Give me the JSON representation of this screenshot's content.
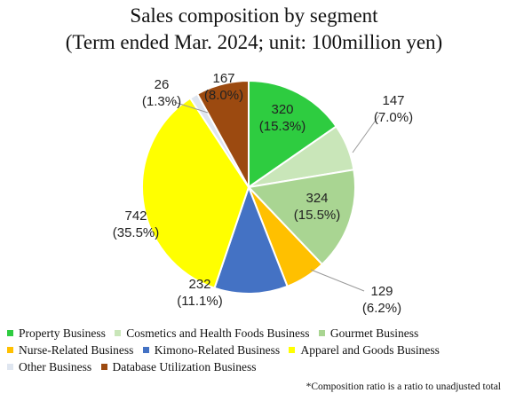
{
  "chart_data": {
    "type": "pie",
    "title": "Sales composition by segment",
    "subtitle": "(Term ended Mar. 2024; unit: 100million yen)",
    "slices": [
      {
        "name": "Property Business",
        "value": 320,
        "percent": "15.3%",
        "color": "#2ecc40"
      },
      {
        "name": "Cosmetics and Health Foods Business",
        "value": 147,
        "percent": "7.0%",
        "color": "#c9e6b9"
      },
      {
        "name": "Gourmet Business",
        "value": 324,
        "percent": "15.5%",
        "color": "#a9d592"
      },
      {
        "name": "Nurse-Related Business",
        "value": 129,
        "percent": "6.2%",
        "color": "#ffc000"
      },
      {
        "name": "Kimono-Related Business",
        "value": 232,
        "percent": "11.1%",
        "color": "#4472c4"
      },
      {
        "name": "Apparel and Goods Business",
        "value": 742,
        "percent": "35.5%",
        "color": "#ffff00"
      },
      {
        "name": "Other Business",
        "value": 26,
        "percent": "1.3%",
        "color": "#dfe6f0"
      },
      {
        "name": "Database Utilization Business",
        "value": 167,
        "percent": "8.0%",
        "color": "#9c4a10"
      }
    ],
    "legend_position": "bottom",
    "footnote": "*Composition ratio is a ratio to unadjusted total"
  }
}
